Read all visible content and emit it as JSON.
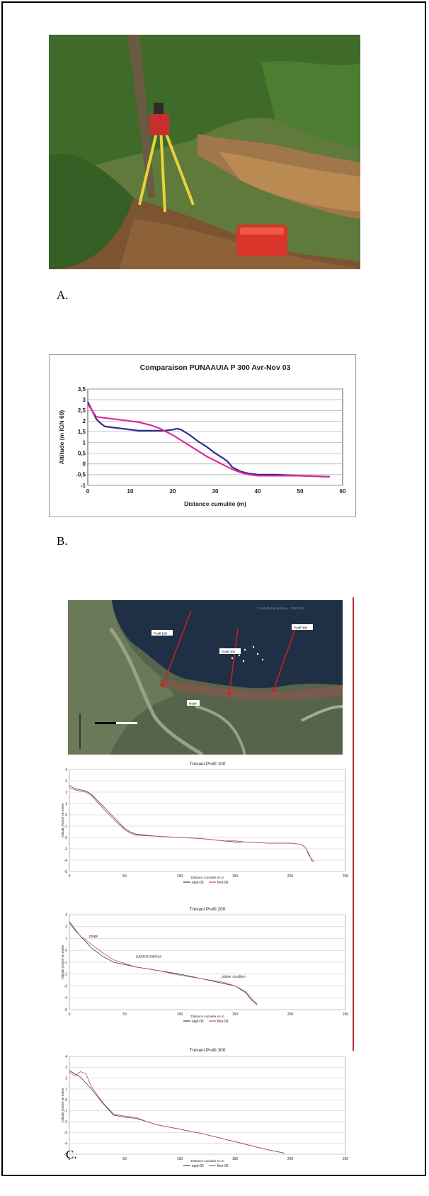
{
  "figure": {
    "captions": {
      "a": "A.",
      "b": "B.",
      "c": "C."
    }
  },
  "panel_c_map": {
    "credit": "Fond photographique : IGN 2001",
    "labels": [
      "Profil 100",
      "Profil 200",
      "Profil 300",
      "Hotel"
    ]
  },
  "chart_data": [
    {
      "type": "line",
      "title": "Comparaison PUNAAUIA P 300 Avr-Nov 03",
      "xlabel": "Distance cumulée (m)",
      "ylabel": "Altitude (m IGN 69)",
      "xlim": [
        0,
        60
      ],
      "ylim": [
        -1,
        3.5
      ],
      "xticks": [
        "0",
        "10",
        "20",
        "30",
        "40",
        "50",
        "60"
      ],
      "yticks": [
        "-1",
        "-0,5",
        "0",
        "0,5",
        "1",
        "1,5",
        "2",
        "2,5",
        "3",
        "3,5"
      ],
      "grid": true,
      "series": [
        {
          "color": "#2e2d8f",
          "x": [
            0,
            1,
            2,
            3,
            4,
            6,
            8,
            10,
            12,
            15,
            18,
            20,
            21,
            22,
            24,
            26,
            28,
            30,
            32,
            33,
            34,
            36,
            38,
            40,
            44,
            50,
            57
          ],
          "y": [
            2.9,
            2.5,
            2.1,
            1.9,
            1.75,
            1.7,
            1.65,
            1.6,
            1.55,
            1.55,
            1.55,
            1.6,
            1.65,
            1.6,
            1.35,
            1.05,
            0.8,
            0.5,
            0.25,
            0.1,
            -0.15,
            -0.35,
            -0.45,
            -0.5,
            -0.5,
            -0.55,
            -0.6
          ]
        },
        {
          "color": "#e0269a",
          "x": [
            0,
            1,
            2,
            4,
            8,
            12,
            15,
            17,
            20,
            22,
            24,
            26,
            28,
            30,
            32,
            34,
            36,
            38,
            40,
            44,
            50,
            57
          ],
          "y": [
            2.8,
            2.5,
            2.2,
            2.15,
            2.05,
            1.95,
            1.8,
            1.65,
            1.35,
            1.1,
            0.85,
            0.6,
            0.35,
            0.15,
            -0.05,
            -0.25,
            -0.4,
            -0.5,
            -0.55,
            -0.55,
            -0.55,
            -0.6
          ]
        }
      ]
    },
    {
      "type": "line",
      "title": "Trevani Profil 100",
      "xlabel": "Distance cumulée en m",
      "ylabel": "Altitude (NGM) en mètre",
      "xlim": [
        0,
        250
      ],
      "ylim": [
        -5,
        4
      ],
      "xticks": [
        "0",
        "50",
        "100",
        "150",
        "200",
        "250"
      ],
      "yticks": [
        "4",
        "3",
        "2",
        "1",
        "0",
        "-1",
        "-2",
        "-3",
        "-4",
        "-5"
      ],
      "grid": true,
      "legend": [
        "sept-05",
        "févr-06"
      ],
      "series": [
        {
          "name": "sept-05",
          "color": "#3a3a8a",
          "x": [
            0,
            5,
            15,
            20,
            30,
            40,
            50,
            55,
            60,
            80,
            100,
            120,
            140,
            150,
            160,
            180,
            200,
            210,
            214,
            217,
            220
          ],
          "y": [
            2.6,
            2.3,
            2.1,
            1.8,
            0.8,
            -0.2,
            -1.2,
            -1.5,
            -1.7,
            -1.9,
            -2.0,
            -2.1,
            -2.3,
            -2.4,
            -2.4,
            -2.5,
            -2.5,
            -2.6,
            -2.9,
            -3.5,
            -4.1
          ]
        },
        {
          "name": "févr-06",
          "color": "#c0504d",
          "x": [
            0,
            5,
            15,
            20,
            30,
            40,
            50,
            55,
            60,
            80,
            100,
            120,
            140,
            150,
            160,
            180,
            200,
            210,
            214,
            217,
            222
          ],
          "y": [
            2.4,
            2.2,
            2.0,
            1.7,
            0.6,
            -0.4,
            -1.3,
            -1.6,
            -1.8,
            -1.9,
            -2.0,
            -2.1,
            -2.3,
            -2.3,
            -2.4,
            -2.5,
            -2.5,
            -2.6,
            -2.9,
            -3.6,
            -4.2
          ]
        }
      ]
    },
    {
      "type": "line",
      "title": "Trevani Profil 200",
      "xlabel": "Distance cumulée en m",
      "ylabel": "Altitude (NGM) en mètre",
      "xlim": [
        0,
        250
      ],
      "ylim": [
        -5,
        3
      ],
      "xticks": [
        "0",
        "50",
        "100",
        "150",
        "200",
        "250"
      ],
      "yticks": [
        "3",
        "2",
        "1",
        "0",
        "-1",
        "-2",
        "-3",
        "-4",
        "-5"
      ],
      "grid": true,
      "legend": [
        "sept-05",
        "févr-06"
      ],
      "annotations": [
        "plage",
        "substrat sableux",
        "platier corallien"
      ],
      "series": [
        {
          "name": "sept-05",
          "color": "#3a3a8a",
          "x": [
            0,
            5,
            10,
            20,
            30,
            40,
            50,
            60,
            80,
            100,
            120,
            140,
            150,
            160,
            165,
            170
          ],
          "y": [
            2.4,
            1.8,
            1.2,
            0.2,
            -0.5,
            -1.0,
            -1.2,
            -1.4,
            -1.7,
            -2.0,
            -2.4,
            -2.8,
            -3.0,
            -3.6,
            -4.2,
            -4.6
          ]
        },
        {
          "name": "févr-06",
          "color": "#c0504d",
          "x": [
            0,
            5,
            10,
            20,
            30,
            40,
            50,
            60,
            80,
            100,
            120,
            140,
            150,
            160,
            165,
            170
          ],
          "y": [
            2.3,
            1.7,
            1.2,
            0.5,
            -0.2,
            -0.8,
            -1.1,
            -1.4,
            -1.7,
            -2.1,
            -2.4,
            -2.7,
            -3.0,
            -3.5,
            -4.1,
            -4.5
          ]
        }
      ]
    },
    {
      "type": "line",
      "title": "Trevani Profil 300",
      "xlabel": "Distance cumulée en m",
      "ylabel": "Altitude (NGM) en mètre",
      "xlim": [
        0,
        250
      ],
      "ylim": [
        -5,
        4
      ],
      "xticks": [
        "0",
        "50",
        "100",
        "150",
        "200",
        "250"
      ],
      "yticks": [
        "4",
        "3",
        "2",
        "1",
        "0",
        "-1",
        "-2",
        "-3",
        "-4",
        "-5"
      ],
      "grid": true,
      "legend": [
        "sept-05",
        "févr-06"
      ],
      "series": [
        {
          "name": "sept-05",
          "color": "#3a3a8a",
          "x": [
            0,
            5,
            10,
            20,
            30,
            40,
            50,
            60,
            70,
            80,
            100,
            120,
            140,
            160,
            180,
            195
          ],
          "y": [
            2.7,
            2.4,
            2.1,
            1.0,
            -0.3,
            -1.4,
            -1.6,
            -1.7,
            -2.0,
            -2.3,
            -2.7,
            -3.1,
            -3.6,
            -4.1,
            -4.6,
            -4.9
          ]
        },
        {
          "name": "févr-06",
          "color": "#c0504d",
          "x": [
            0,
            5,
            10,
            15,
            20,
            30,
            40,
            50,
            60,
            70,
            80,
            100,
            120,
            140,
            160,
            180,
            195
          ],
          "y": [
            2.6,
            2.2,
            2.6,
            2.4,
            1.2,
            -0.2,
            -1.3,
            -1.5,
            -1.6,
            -2.0,
            -2.3,
            -2.7,
            -3.1,
            -3.6,
            -4.1,
            -4.6,
            -4.9
          ]
        }
      ]
    }
  ]
}
